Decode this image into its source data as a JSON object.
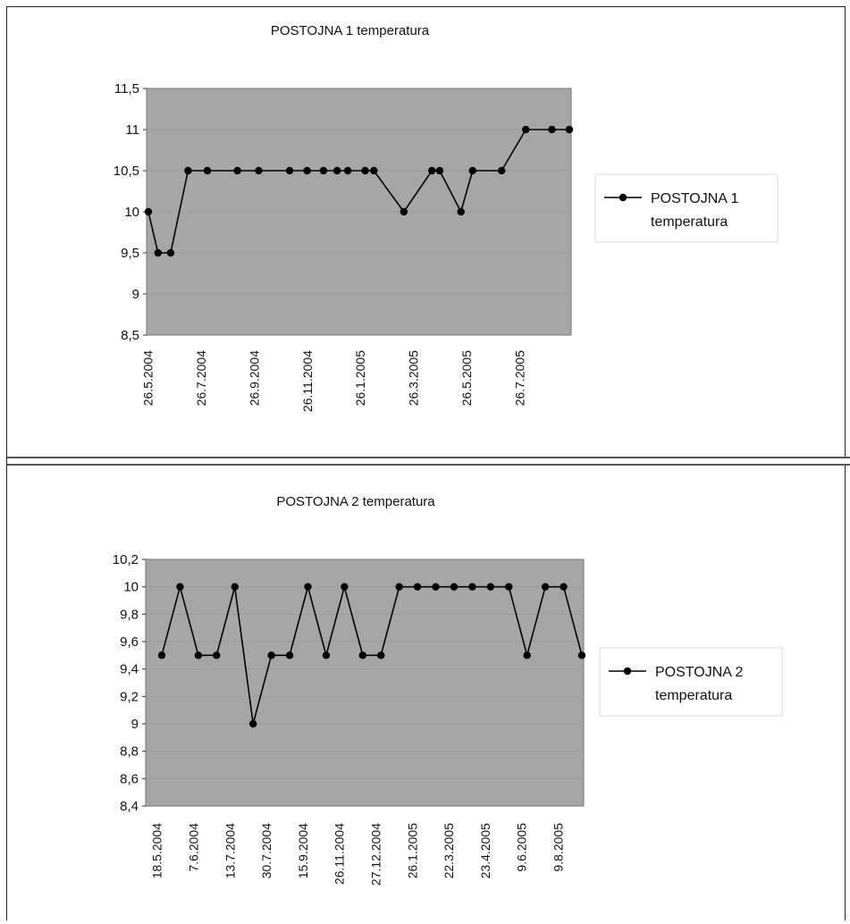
{
  "chart_data": [
    {
      "type": "line",
      "title": "POSTOJNA 1 temperatura",
      "xlabel": "",
      "ylabel": "",
      "ylim": [
        8.5,
        11.5
      ],
      "yticks": [
        "11,5",
        "11",
        "10,5",
        "10",
        "9,5",
        "9",
        "8,5"
      ],
      "ytick_values": [
        11.5,
        11,
        10.5,
        10,
        9.5,
        9,
        8.5
      ],
      "xlabels": [
        "26.5.2004",
        "26.7.2004",
        "26.9.2004",
        "26.11.2004",
        "26.1.2005",
        "26.3.2005",
        "26.5.2005",
        "26.7.2005"
      ],
      "legend_position": "right",
      "legend_lines": [
        "POSTOJNA 1",
        "temperatura"
      ],
      "x": [
        "2004-05-26",
        "2004-06-05",
        "2004-06-18",
        "2004-07-06",
        "2004-07-26",
        "2004-08-26",
        "2004-09-17",
        "2004-10-19",
        "2004-11-06",
        "2004-11-23",
        "2004-12-07",
        "2004-12-18",
        "2005-01-05",
        "2005-01-14",
        "2005-02-14",
        "2005-03-15",
        "2005-03-23",
        "2005-04-14",
        "2005-04-26",
        "2005-05-26",
        "2005-06-20",
        "2005-07-17",
        "2005-08-04"
      ],
      "series": [
        {
          "name": "POSTOJNA 1 temperatura",
          "values": [
            10,
            9.5,
            9.5,
            10.5,
            10.5,
            10.5,
            10.5,
            10.5,
            10.5,
            10.5,
            10.5,
            10.5,
            10.5,
            10.5,
            10,
            10.5,
            10.5,
            10,
            10.5,
            10.5,
            11,
            11,
            11
          ]
        }
      ],
      "colors": {
        "plot_bg": "#a6a6a6",
        "line": "#000000",
        "marker": "#000000"
      }
    },
    {
      "type": "line",
      "title": "POSTOJNA 2 temperatura",
      "xlabel": "",
      "ylabel": "",
      "ylim": [
        8.4,
        10.2
      ],
      "yticks": [
        "10,2",
        "10",
        "9,8",
        "9,6",
        "9,4",
        "9,2",
        "9",
        "8,8",
        "8,6",
        "8,4"
      ],
      "ytick_values": [
        10.2,
        10,
        9.8,
        9.6,
        9.4,
        9.2,
        9,
        8.8,
        8.6,
        8.4
      ],
      "xlabels": [
        "18.5.2004",
        "7.6.2004",
        "13.7.2004",
        "30.7.2004",
        "15.9.2004",
        "26.11.2004",
        "27.12.2004",
        "26.1.2005",
        "22.3.2005",
        "23.4.2005",
        "9.6.2005",
        "9.8.2005"
      ],
      "legend_position": "right",
      "legend_lines": [
        "POSTOJNA 2",
        "temperatura"
      ],
      "series": [
        {
          "name": "POSTOJNA 2 temperatura",
          "values": [
            9.5,
            10,
            9.5,
            9.5,
            10,
            9,
            9.5,
            9.5,
            10,
            9.5,
            10,
            9.5,
            9.5,
            10,
            10,
            10,
            10,
            10,
            10,
            10,
            9.5,
            10,
            10,
            9.5
          ]
        }
      ],
      "colors": {
        "plot_bg": "#a6a6a6",
        "line": "#000000",
        "marker": "#000000"
      }
    }
  ]
}
